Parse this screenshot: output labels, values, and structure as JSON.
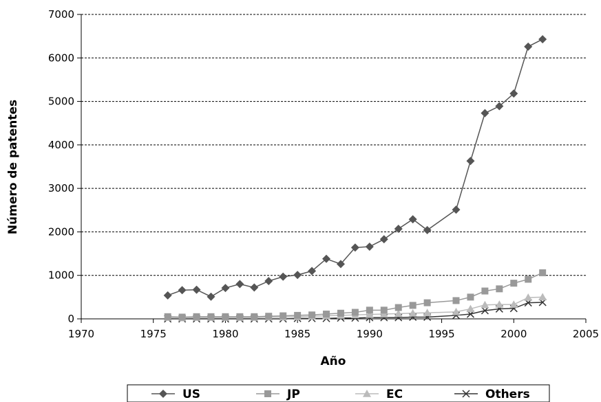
{
  "chart_data": {
    "type": "line",
    "xlabel": "Año",
    "ylabel": "Número de patentes",
    "xlim": [
      1970,
      2005
    ],
    "ylim": [
      0,
      7000
    ],
    "x_ticks": [
      "1970",
      "1975",
      "1980",
      "1985",
      "1990",
      "1995",
      "2000",
      "2005"
    ],
    "y_ticks": [
      "0",
      "1000",
      "2000",
      "3000",
      "4000",
      "5000",
      "6000",
      "7000"
    ],
    "grid": "horizontal dashed",
    "legend_position": "bottom",
    "series": [
      {
        "name": "US",
        "color": "#555555",
        "marker": "diamond",
        "x": [
          1976,
          1977,
          1978,
          1979,
          1980,
          1981,
          1982,
          1983,
          1984,
          1985,
          1986,
          1987,
          1988,
          1989,
          1990,
          1991,
          1992,
          1993,
          1994,
          1996,
          1997,
          1998,
          1999,
          2000,
          2001,
          2002
        ],
        "y": [
          540,
          660,
          670,
          510,
          710,
          800,
          720,
          870,
          970,
          1010,
          1100,
          1380,
          1260,
          1640,
          1660,
          1830,
          2070,
          2290,
          2040,
          2510,
          3630,
          4730,
          4890,
          5180,
          6260,
          6430
        ]
      },
      {
        "name": "JP",
        "color": "#999999",
        "marker": "square",
        "x": [
          1976,
          1977,
          1978,
          1979,
          1980,
          1981,
          1982,
          1983,
          1984,
          1985,
          1986,
          1987,
          1988,
          1989,
          1990,
          1991,
          1992,
          1993,
          1994,
          1996,
          1997,
          1998,
          1999,
          2000,
          2001,
          2002
        ],
        "y": [
          50,
          40,
          50,
          50,
          50,
          50,
          50,
          60,
          70,
          80,
          90,
          110,
          130,
          150,
          200,
          200,
          260,
          310,
          370,
          420,
          500,
          640,
          690,
          820,
          910,
          1060
        ]
      },
      {
        "name": "EC",
        "color": "#bbbbbb",
        "marker": "triangle",
        "x": [
          1976,
          1977,
          1978,
          1979,
          1980,
          1981,
          1982,
          1983,
          1984,
          1985,
          1986,
          1987,
          1988,
          1989,
          1990,
          1991,
          1992,
          1993,
          1994,
          1996,
          1997,
          1998,
          1999,
          2000,
          2001,
          2002
        ],
        "y": [
          30,
          20,
          30,
          30,
          30,
          30,
          30,
          40,
          40,
          50,
          60,
          70,
          80,
          90,
          100,
          110,
          120,
          130,
          140,
          160,
          230,
          320,
          330,
          330,
          490,
          500
        ]
      },
      {
        "name": "Others",
        "color": "#333333",
        "marker": "x",
        "x": [
          1976,
          1977,
          1978,
          1979,
          1980,
          1981,
          1982,
          1983,
          1984,
          1985,
          1986,
          1987,
          1988,
          1989,
          1990,
          1991,
          1992,
          1993,
          1994,
          1996,
          1997,
          1998,
          1999,
          2000,
          2001,
          2002
        ],
        "y": [
          0,
          0,
          0,
          0,
          0,
          0,
          0,
          0,
          0,
          10,
          10,
          10,
          20,
          20,
          30,
          30,
          30,
          40,
          40,
          80,
          110,
          190,
          230,
          240,
          370,
          380
        ]
      }
    ]
  }
}
